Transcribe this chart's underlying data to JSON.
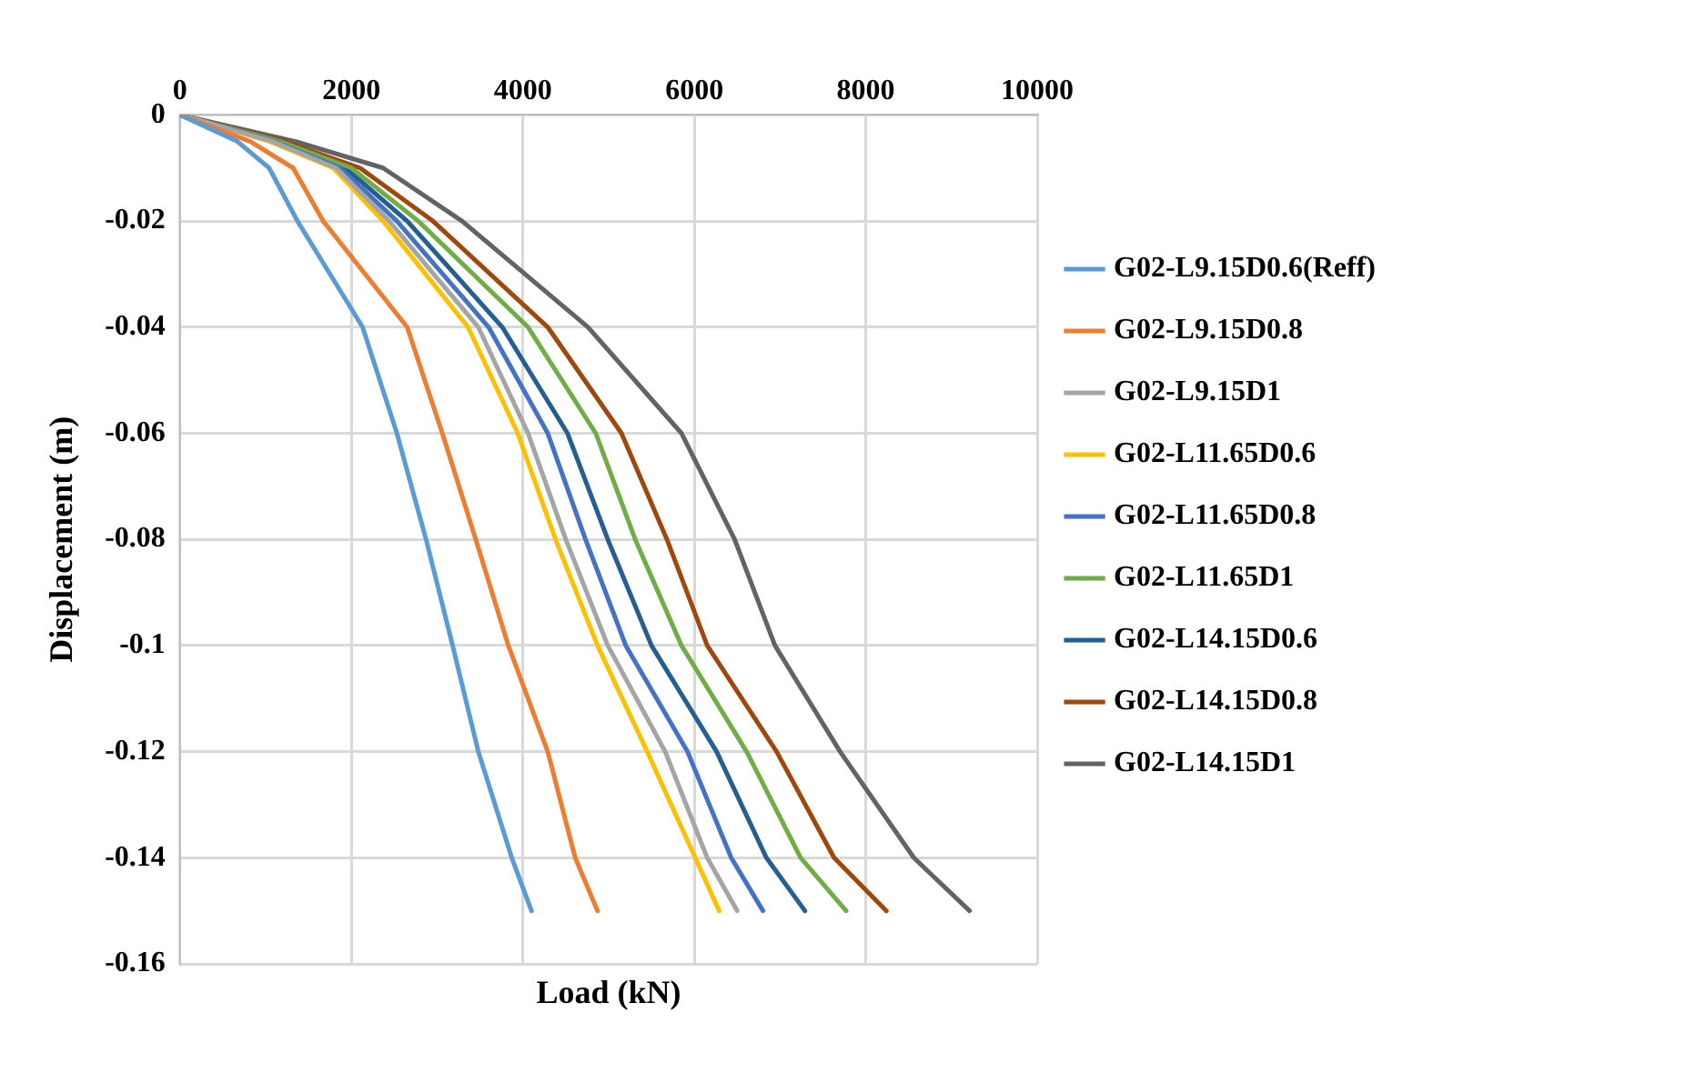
{
  "chart_data": {
    "type": "line",
    "xlabel": "Load (kN)",
    "ylabel": "Displacement (m)",
    "xlim": [
      0,
      10000
    ],
    "xticks": [
      0,
      2000,
      4000,
      6000,
      8000,
      10000
    ],
    "ylim": [
      -0.16,
      0
    ],
    "yticks": [
      0,
      -0.02,
      -0.04,
      -0.06,
      -0.08,
      -0.1,
      -0.12,
      -0.14,
      -0.16
    ],
    "grid": true,
    "legend": "right",
    "marker": "none",
    "line_style": "solid",
    "series": [
      {
        "name": "G02-L9.15D0.6(Reff)",
        "color": "#5b9bd5",
        "x": [
          0,
          670,
          1040,
          1370,
          2130,
          2530,
          2870,
          3180,
          3480,
          3870,
          4100
        ],
        "values": [
          0,
          -0.005,
          -0.01,
          -0.02,
          -0.04,
          -0.06,
          -0.08,
          -0.1,
          -0.12,
          -0.14,
          -0.15
        ]
      },
      {
        "name": "G02-L9.15D0.8",
        "color": "#ed7d31",
        "x": [
          0,
          820,
          1320,
          1670,
          2650,
          3060,
          3450,
          3830,
          4290,
          4610,
          4870
        ],
        "values": [
          0,
          -0.005,
          -0.01,
          -0.02,
          -0.04,
          -0.06,
          -0.08,
          -0.1,
          -0.12,
          -0.14,
          -0.15
        ]
      },
      {
        "name": "G02-L9.15D1",
        "color": "#a5a5a5",
        "x": [
          0,
          1080,
          1820,
          2440,
          3480,
          4060,
          4500,
          4990,
          5660,
          6150,
          6500
        ],
        "values": [
          0,
          -0.005,
          -0.01,
          -0.02,
          -0.04,
          -0.06,
          -0.08,
          -0.1,
          -0.12,
          -0.14,
          -0.15
        ]
      },
      {
        "name": "G02-L11.65D0.6",
        "color": "#ffc000",
        "x": [
          0,
          1050,
          1790,
          2370,
          3360,
          3940,
          4380,
          4870,
          5450,
          6010,
          6290
        ],
        "values": [
          0,
          -0.005,
          -0.01,
          -0.02,
          -0.04,
          -0.06,
          -0.08,
          -0.1,
          -0.12,
          -0.14,
          -0.15
        ]
      },
      {
        "name": "G02-L11.65D0.8",
        "color": "#4472c4",
        "x": [
          0,
          1100,
          1870,
          2530,
          3600,
          4290,
          4730,
          5200,
          5920,
          6430,
          6800
        ],
        "values": [
          0,
          -0.005,
          -0.01,
          -0.02,
          -0.04,
          -0.06,
          -0.08,
          -0.1,
          -0.12,
          -0.14,
          -0.15
        ]
      },
      {
        "name": "G02-L11.65D1",
        "color": "#70ad47",
        "x": [
          0,
          1170,
          2000,
          2780,
          4060,
          4850,
          5310,
          5850,
          6610,
          7240,
          7770
        ],
        "values": [
          0,
          -0.005,
          -0.01,
          -0.02,
          -0.04,
          -0.06,
          -0.08,
          -0.1,
          -0.12,
          -0.14,
          -0.15
        ]
      },
      {
        "name": "G02-L14.15D0.6",
        "color": "#255e91",
        "x": [
          0,
          1130,
          1930,
          2650,
          3760,
          4520,
          4990,
          5500,
          6260,
          6840,
          7290
        ],
        "values": [
          0,
          -0.005,
          -0.01,
          -0.02,
          -0.04,
          -0.06,
          -0.08,
          -0.1,
          -0.12,
          -0.14,
          -0.15
        ]
      },
      {
        "name": "G02-L14.15D0.8",
        "color": "#9e480e",
        "x": [
          0,
          1220,
          2100,
          2950,
          4290,
          5150,
          5680,
          6150,
          6960,
          7630,
          8240
        ],
        "values": [
          0,
          -0.005,
          -0.01,
          -0.02,
          -0.04,
          -0.06,
          -0.08,
          -0.1,
          -0.12,
          -0.14,
          -0.15
        ]
      },
      {
        "name": "G02-L14.15D1",
        "color": "#636363",
        "x": [
          0,
          1350,
          2370,
          3290,
          4760,
          5850,
          6470,
          6940,
          7700,
          8560,
          9210
        ],
        "values": [
          0,
          -0.005,
          -0.01,
          -0.02,
          -0.04,
          -0.06,
          -0.08,
          -0.1,
          -0.12,
          -0.14,
          -0.15
        ]
      }
    ]
  }
}
